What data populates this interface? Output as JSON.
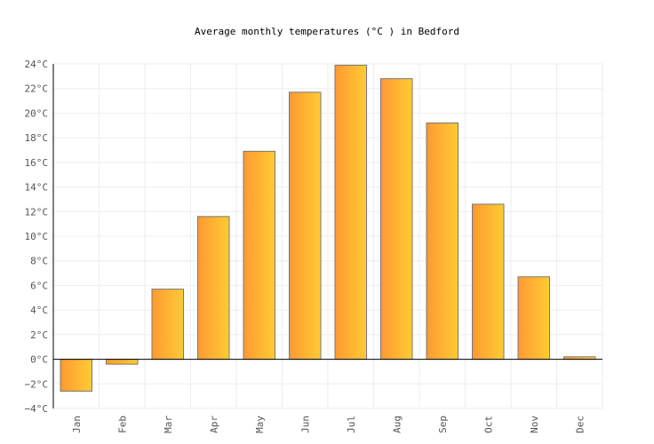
{
  "chart_data": {
    "type": "bar",
    "title": "Average monthly temperatures (°C ) in Bedford",
    "categories": [
      "Jan",
      "Feb",
      "Mar",
      "Apr",
      "May",
      "Jun",
      "Jul",
      "Aug",
      "Sep",
      "Oct",
      "Nov",
      "Dec"
    ],
    "values": [
      -2.6,
      -0.4,
      5.7,
      11.6,
      16.9,
      21.7,
      23.9,
      22.8,
      19.2,
      12.6,
      6.7,
      0.2
    ],
    "ylim": [
      -4,
      24
    ],
    "yticks": [
      -4,
      -2,
      0,
      2,
      4,
      6,
      8,
      10,
      12,
      14,
      16,
      18,
      20,
      22,
      24
    ],
    "ytick_unit": "°C",
    "grid": true,
    "colors": {
      "bar_start": "#ff9933",
      "bar_end": "#ffcc33",
      "bar_border": "#777777"
    }
  }
}
